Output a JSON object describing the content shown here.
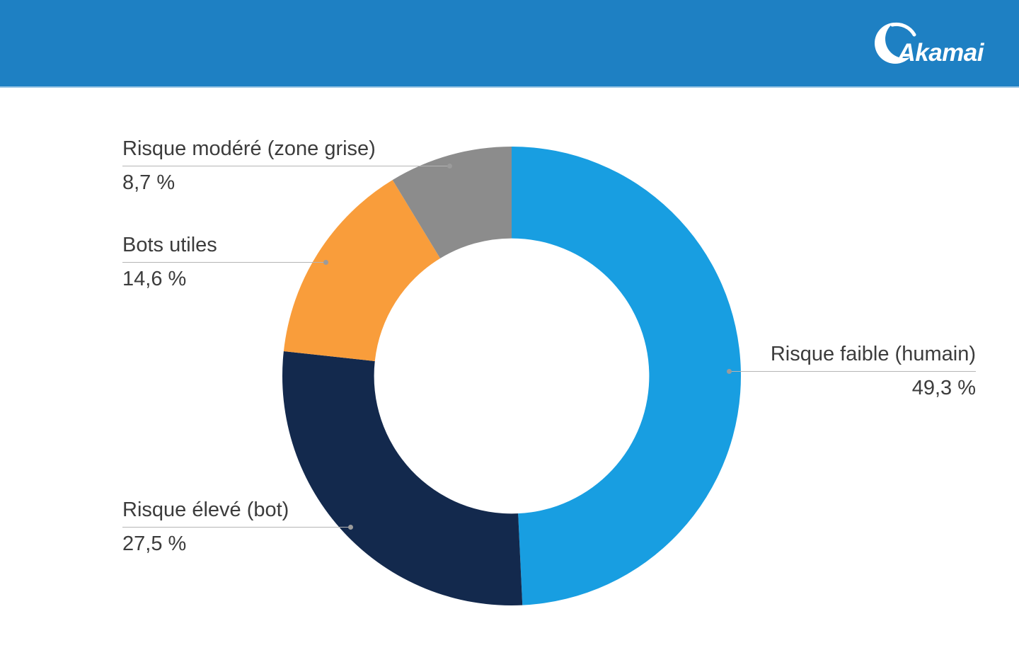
{
  "header": {
    "background_color": "#1E80C3",
    "logo": {
      "text": "Akamai",
      "color": "#FFFFFF"
    }
  },
  "chart_data": {
    "type": "pie",
    "subtype": "donut",
    "title": "",
    "slices": [
      {
        "label": "Risque faible (humain)",
        "value": 49.3,
        "value_label": "49,3 %",
        "color": "#189EE1"
      },
      {
        "label": "Risque élevé (bot)",
        "value": 27.5,
        "value_label": "27,5 %",
        "color": "#13294D"
      },
      {
        "label": "Bots utiles",
        "value": 14.6,
        "value_label": "14,6 %",
        "color": "#F99D3B"
      },
      {
        "label": "Risque modéré (zone grise)",
        "value": 8.7,
        "value_label": "8,7 %",
        "color": "#8C8C8C"
      }
    ],
    "start_angle_deg": 0,
    "direction": "clockwise",
    "inner_radius_ratio": 0.6,
    "legend_position": "callout-labels"
  },
  "styles": {
    "label_text_color": "#3C3C3C",
    "leader_line_color": "#B5B5B5",
    "leader_dot_color": "#9B9B9B"
  }
}
